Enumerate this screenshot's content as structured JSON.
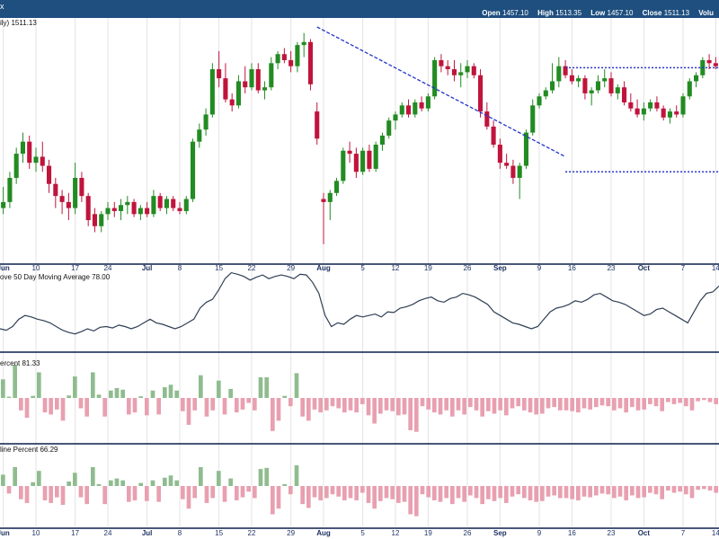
{
  "header": {
    "symbol_fragment": "x",
    "ohlc": [
      {
        "label": "Open",
        "value": "1457.10"
      },
      {
        "label": "High",
        "value": "1513.35"
      },
      {
        "label": "Low",
        "value": "1457.10"
      },
      {
        "label": "Close",
        "value": "1511.13"
      },
      {
        "label": "Volu",
        "value": ""
      }
    ]
  },
  "panels": {
    "price_label": "ily) 1511.13",
    "ma_label": "ove 50 Day Moving Average 78.00",
    "adv_label": "ercent 81.33",
    "decline_label": "line Percent 66.29"
  },
  "colors": {
    "header_bg": "#1f4f7f",
    "up": "#228b22",
    "down": "#c0143c",
    "ma_line": "#2f3f55",
    "bar_up": "#8fbc8f",
    "bar_down": "#e8a0b0",
    "trend": "#2233cc",
    "grid": "#e3e3e3",
    "divider": "#0b1f4f"
  },
  "chart_data": [
    {
      "type": "candlestick",
      "panel": "price",
      "x_tick_labels": [
        "Jun",
        "10",
        "17",
        "24",
        "Jul",
        "8",
        "15",
        "22",
        "29",
        "Aug",
        "5",
        "12",
        "19",
        "26",
        "Sep",
        "9",
        "16",
        "23",
        "Oct",
        "7",
        "14"
      ],
      "month_labels": [
        "Jun",
        "Jul",
        "Aug",
        "Sep",
        "Oct"
      ],
      "last_close": 1511.13,
      "trendlines": [
        {
          "from": [
            48,
            100
          ],
          "to": [
            86,
            57
          ],
          "style": "dashed"
        }
      ],
      "channel": {
        "top": 86.5,
        "bottom": 52,
        "x_range": [
          86,
          115
        ],
        "style": "dotted"
      },
      "candles": [
        {
          "o": 40,
          "h": 47,
          "l": 38,
          "c": 42
        },
        {
          "o": 42,
          "h": 52,
          "l": 40,
          "c": 50
        },
        {
          "o": 50,
          "h": 60,
          "l": 48,
          "c": 58
        },
        {
          "o": 58,
          "h": 65,
          "l": 55,
          "c": 62
        },
        {
          "o": 62,
          "h": 64,
          "l": 53,
          "c": 55
        },
        {
          "o": 55,
          "h": 60,
          "l": 52,
          "c": 57
        },
        {
          "o": 57,
          "h": 62,
          "l": 52,
          "c": 54
        },
        {
          "o": 54,
          "h": 56,
          "l": 45,
          "c": 48
        },
        {
          "o": 48,
          "h": 50,
          "l": 40,
          "c": 44
        },
        {
          "o": 44,
          "h": 46,
          "l": 38,
          "c": 42
        },
        {
          "o": 42,
          "h": 45,
          "l": 36,
          "c": 40
        },
        {
          "o": 40,
          "h": 55,
          "l": 38,
          "c": 50
        },
        {
          "o": 50,
          "h": 52,
          "l": 42,
          "c": 44
        },
        {
          "o": 44,
          "h": 45,
          "l": 34,
          "c": 36
        },
        {
          "o": 38,
          "h": 40,
          "l": 32,
          "c": 34
        },
        {
          "o": 34,
          "h": 39,
          "l": 32,
          "c": 38
        },
        {
          "o": 38,
          "h": 42,
          "l": 36,
          "c": 40
        },
        {
          "o": 40,
          "h": 42,
          "l": 37,
          "c": 39
        },
        {
          "o": 39,
          "h": 43,
          "l": 36,
          "c": 41
        },
        {
          "o": 41,
          "h": 44,
          "l": 38,
          "c": 42
        },
        {
          "o": 42,
          "h": 43,
          "l": 37,
          "c": 38
        },
        {
          "o": 38,
          "h": 41,
          "l": 36,
          "c": 40
        },
        {
          "o": 40,
          "h": 42,
          "l": 37,
          "c": 38
        },
        {
          "o": 38,
          "h": 46,
          "l": 37,
          "c": 44
        },
        {
          "o": 44,
          "h": 45,
          "l": 39,
          "c": 40
        },
        {
          "o": 40,
          "h": 44,
          "l": 38,
          "c": 43
        },
        {
          "o": 43,
          "h": 44,
          "l": 39,
          "c": 40
        },
        {
          "o": 40,
          "h": 42,
          "l": 38,
          "c": 39
        },
        {
          "o": 39,
          "h": 44,
          "l": 38,
          "c": 43
        },
        {
          "o": 43,
          "h": 63,
          "l": 42,
          "c": 62
        },
        {
          "o": 62,
          "h": 68,
          "l": 60,
          "c": 66
        },
        {
          "o": 66,
          "h": 73,
          "l": 64,
          "c": 71
        },
        {
          "o": 71,
          "h": 88,
          "l": 70,
          "c": 86
        },
        {
          "o": 86,
          "h": 92,
          "l": 80,
          "c": 83
        },
        {
          "o": 83,
          "h": 88,
          "l": 75,
          "c": 76
        },
        {
          "o": 76,
          "h": 78,
          "l": 72,
          "c": 74
        },
        {
          "o": 74,
          "h": 84,
          "l": 73,
          "c": 82
        },
        {
          "o": 82,
          "h": 87,
          "l": 78,
          "c": 80
        },
        {
          "o": 80,
          "h": 88,
          "l": 79,
          "c": 86
        },
        {
          "o": 86,
          "h": 88,
          "l": 78,
          "c": 79
        },
        {
          "o": 79,
          "h": 82,
          "l": 76,
          "c": 80
        },
        {
          "o": 80,
          "h": 90,
          "l": 79,
          "c": 88
        },
        {
          "o": 88,
          "h": 92,
          "l": 86,
          "c": 91
        },
        {
          "o": 91,
          "h": 93,
          "l": 88,
          "c": 89
        },
        {
          "o": 89,
          "h": 92,
          "l": 85,
          "c": 87
        },
        {
          "o": 87,
          "h": 95,
          "l": 85,
          "c": 94
        },
        {
          "o": 94,
          "h": 98,
          "l": 90,
          "c": 95
        },
        {
          "o": 95,
          "h": 96,
          "l": 79,
          "c": 81
        },
        {
          "o": 72,
          "h": 75,
          "l": 61,
          "c": 63
        },
        {
          "o": 43,
          "h": 45,
          "l": 28,
          "c": 42
        },
        {
          "o": 42,
          "h": 46,
          "l": 36,
          "c": 45
        },
        {
          "o": 45,
          "h": 50,
          "l": 44,
          "c": 49
        },
        {
          "o": 49,
          "h": 60,
          "l": 48,
          "c": 59
        },
        {
          "o": 59,
          "h": 62,
          "l": 55,
          "c": 58
        },
        {
          "o": 58,
          "h": 60,
          "l": 50,
          "c": 52
        },
        {
          "o": 52,
          "h": 60,
          "l": 51,
          "c": 59
        },
        {
          "o": 59,
          "h": 61,
          "l": 52,
          "c": 53
        },
        {
          "o": 53,
          "h": 62,
          "l": 52,
          "c": 61
        },
        {
          "o": 61,
          "h": 65,
          "l": 59,
          "c": 64
        },
        {
          "o": 64,
          "h": 70,
          "l": 63,
          "c": 69
        },
        {
          "o": 69,
          "h": 72,
          "l": 66,
          "c": 71
        },
        {
          "o": 71,
          "h": 75,
          "l": 70,
          "c": 74
        },
        {
          "o": 74,
          "h": 76,
          "l": 70,
          "c": 71
        },
        {
          "o": 71,
          "h": 76,
          "l": 70,
          "c": 75
        },
        {
          "o": 75,
          "h": 77,
          "l": 72,
          "c": 73
        },
        {
          "o": 73,
          "h": 78,
          "l": 72,
          "c": 77
        },
        {
          "o": 77,
          "h": 90,
          "l": 76,
          "c": 89
        },
        {
          "o": 89,
          "h": 91,
          "l": 85,
          "c": 87
        },
        {
          "o": 87,
          "h": 89,
          "l": 84,
          "c": 86
        },
        {
          "o": 86,
          "h": 89,
          "l": 82,
          "c": 84
        },
        {
          "o": 84,
          "h": 88,
          "l": 80,
          "c": 85
        },
        {
          "o": 85,
          "h": 89,
          "l": 83,
          "c": 87
        },
        {
          "o": 87,
          "h": 88,
          "l": 83,
          "c": 84
        },
        {
          "o": 84,
          "h": 86,
          "l": 70,
          "c": 72
        },
        {
          "o": 72,
          "h": 75,
          "l": 66,
          "c": 67
        },
        {
          "o": 67,
          "h": 69,
          "l": 60,
          "c": 61
        },
        {
          "o": 61,
          "h": 63,
          "l": 53,
          "c": 55
        },
        {
          "o": 55,
          "h": 58,
          "l": 53,
          "c": 54
        },
        {
          "o": 54,
          "h": 56,
          "l": 48,
          "c": 50
        },
        {
          "o": 50,
          "h": 55,
          "l": 43,
          "c": 54
        },
        {
          "o": 54,
          "h": 66,
          "l": 53,
          "c": 65
        },
        {
          "o": 65,
          "h": 76,
          "l": 64,
          "c": 74
        },
        {
          "o": 74,
          "h": 78,
          "l": 73,
          "c": 77
        },
        {
          "o": 77,
          "h": 80,
          "l": 76,
          "c": 79
        },
        {
          "o": 79,
          "h": 88,
          "l": 78,
          "c": 82
        },
        {
          "o": 82,
          "h": 90,
          "l": 80,
          "c": 87
        },
        {
          "o": 87,
          "h": 89,
          "l": 83,
          "c": 84
        },
        {
          "o": 84,
          "h": 86,
          "l": 81,
          "c": 82
        },
        {
          "o": 82,
          "h": 84,
          "l": 80,
          "c": 83
        },
        {
          "o": 83,
          "h": 84,
          "l": 76,
          "c": 78
        },
        {
          "o": 78,
          "h": 80,
          "l": 74,
          "c": 79
        },
        {
          "o": 79,
          "h": 84,
          "l": 78,
          "c": 82
        },
        {
          "o": 82,
          "h": 86,
          "l": 80,
          "c": 83
        },
        {
          "o": 83,
          "h": 85,
          "l": 77,
          "c": 78
        },
        {
          "o": 78,
          "h": 81,
          "l": 76,
          "c": 80
        },
        {
          "o": 80,
          "h": 82,
          "l": 74,
          "c": 75
        },
        {
          "o": 75,
          "h": 78,
          "l": 72,
          "c": 73
        },
        {
          "o": 73,
          "h": 76,
          "l": 70,
          "c": 71
        },
        {
          "o": 71,
          "h": 75,
          "l": 69,
          "c": 73
        },
        {
          "o": 73,
          "h": 76,
          "l": 72,
          "c": 75
        },
        {
          "o": 75,
          "h": 77,
          "l": 72,
          "c": 73
        },
        {
          "o": 73,
          "h": 74,
          "l": 69,
          "c": 70
        },
        {
          "o": 70,
          "h": 73,
          "l": 68,
          "c": 72
        },
        {
          "o": 72,
          "h": 74,
          "l": 70,
          "c": 71
        },
        {
          "o": 71,
          "h": 78,
          "l": 70,
          "c": 77
        },
        {
          "o": 77,
          "h": 83,
          "l": 76,
          "c": 82
        },
        {
          "o": 82,
          "h": 85,
          "l": 80,
          "c": 84
        },
        {
          "o": 84,
          "h": 90,
          "l": 83,
          "c": 89
        },
        {
          "o": 89,
          "h": 91,
          "l": 86,
          "c": 88
        },
        {
          "o": 88,
          "h": 90,
          "l": 86,
          "c": 87
        }
      ]
    },
    {
      "type": "line",
      "panel": "ma50",
      "last_value": 78.0,
      "values": [
        22,
        20,
        25,
        35,
        40,
        38,
        35,
        33,
        30,
        25,
        20,
        17,
        15,
        18,
        22,
        19,
        24,
        25,
        23,
        27,
        25,
        22,
        25,
        30,
        35,
        30,
        28,
        25,
        22,
        25,
        30,
        35,
        50,
        58,
        62,
        75,
        90,
        98,
        96,
        93,
        88,
        92,
        95,
        90,
        93,
        95,
        93,
        90,
        96,
        95,
        85,
        70,
        40,
        25,
        30,
        28,
        35,
        40,
        38,
        40,
        42,
        38,
        45,
        44,
        50,
        52,
        55,
        60,
        63,
        65,
        60,
        58,
        63,
        65,
        70,
        68,
        65,
        60,
        55,
        45,
        40,
        35,
        30,
        28,
        25,
        22,
        25,
        35,
        45,
        50,
        52,
        55,
        60,
        58,
        62,
        68,
        70,
        65,
        60,
        58,
        55,
        50,
        45,
        40,
        42,
        48,
        50,
        45,
        40,
        35,
        30,
        45,
        60,
        70,
        72,
        80
      ]
    },
    {
      "type": "bar",
      "panel": "advance_percent",
      "last_value": 81.33,
      "values": [
        45,
        3,
        80,
        -30,
        -48,
        5,
        62,
        -35,
        -40,
        -28,
        -55,
        6,
        52,
        -25,
        -45,
        62,
        8,
        -45,
        18,
        24,
        20,
        -40,
        -35,
        4,
        -42,
        18,
        -40,
        26,
        32,
        18,
        -32,
        -65,
        -30,
        55,
        -45,
        -30,
        42,
        -40,
        22,
        -35,
        -28,
        -12,
        -30,
        50,
        50,
        -80,
        -55,
        5,
        -20,
        60,
        -45,
        -55,
        -28,
        -35,
        -30,
        -20,
        -25,
        -35,
        -30,
        -35,
        -15,
        -42,
        -62,
        -38,
        -30,
        -32,
        -42,
        -40,
        -78,
        -82,
        -20,
        -28,
        -35,
        -40,
        -30,
        -45,
        -30,
        -40,
        -22,
        -30,
        -45,
        -32,
        -38,
        -30,
        -42,
        -25,
        -20,
        -30,
        -35,
        -40,
        -38,
        -25,
        -22,
        -30,
        -30,
        -32,
        -35,
        -25,
        -28,
        -22,
        -18,
        -20,
        -30,
        -25,
        -35,
        -22,
        -30,
        -28,
        -15,
        -20,
        -32,
        -10,
        -15,
        -12,
        -20,
        -30,
        -8,
        -5,
        -10,
        -15
      ]
    },
    {
      "type": "bar",
      "panel": "decline_percent",
      "last_value": 66.29,
      "values": [
        30,
        -20,
        50,
        -35,
        -45,
        10,
        40,
        -38,
        -45,
        -30,
        -50,
        12,
        35,
        -30,
        -48,
        50,
        5,
        -48,
        15,
        20,
        15,
        -42,
        -38,
        8,
        -40,
        15,
        -42,
        22,
        28,
        15,
        -35,
        -60,
        -32,
        50,
        -45,
        -32,
        40,
        -42,
        20,
        -38,
        -30,
        -15,
        -32,
        45,
        48,
        -75,
        -60,
        5,
        -22,
        55,
        -48,
        -58,
        -30,
        -38,
        -32,
        -22,
        -28,
        -38,
        -32,
        -38,
        -18,
        -45,
        -60,
        -40,
        -32,
        -35,
        -45,
        -42,
        -75,
        -80,
        -22,
        -30,
        -38,
        -42,
        -32,
        -48,
        -32,
        -42,
        -25,
        -32,
        -48,
        -35,
        -40,
        -32,
        -45,
        -28,
        -22,
        -32,
        -38,
        -42,
        -40,
        -28,
        -25,
        -32,
        -32,
        -35,
        -38,
        -28,
        -30,
        -25,
        -20,
        -22,
        -32,
        -28,
        -38,
        -25,
        -32,
        -30,
        -18,
        -22,
        -35,
        -12,
        -18,
        -15,
        -22,
        -32,
        -10,
        -8,
        -12,
        -18
      ]
    }
  ]
}
